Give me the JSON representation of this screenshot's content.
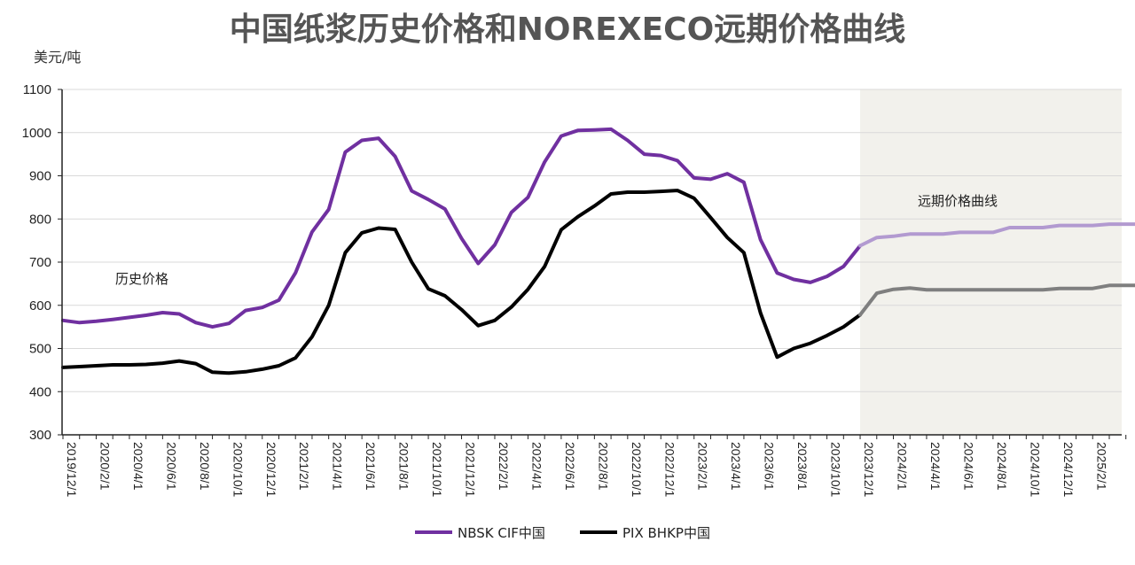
{
  "colors": {
    "nbsk_hist": "#7030a0",
    "nbsk_fwd": "#b29ad0",
    "pix_hist": "#000000",
    "pix_fwd": "#7f7f7f",
    "forward_bg": "#f2f1ec"
  },
  "chart_data": {
    "type": "line",
    "title": "中国纸浆历史价格和NOREXECO远期价格曲线",
    "ylabel": "美元/吨",
    "xlabel": "",
    "ylim": [
      300,
      1100
    ],
    "yticks": [
      300,
      400,
      500,
      600,
      700,
      800,
      900,
      1000,
      1100
    ],
    "grid": true,
    "legend_position": "bottom",
    "x_tick_labels": [
      "2019/12/1",
      "2020/2/1",
      "2020/4/1",
      "2020/6/1",
      "2020/8/1",
      "2020/10/1",
      "2020/12/1",
      "2021/2/1",
      "2021/4/1",
      "2021/6/1",
      "2021/8/1",
      "2021/10/1",
      "2021/12/1",
      "2022/2/1",
      "2022/4/1",
      "2022/6/1",
      "2022/8/1",
      "2022/10/1",
      "2022/12/1",
      "2023/2/1",
      "2023/4/1",
      "2023/6/1",
      "2023/8/1",
      "2023/10/1",
      "2023/12/1",
      "2024/2/1",
      "2024/4/1",
      "2024/6/1",
      "2024/8/1",
      "2024/10/1",
      "2024/12/1",
      "2025/2/1"
    ],
    "annotations": {
      "historical": "历史价格",
      "forward": "远期价格曲线"
    },
    "forward_start_month": "2023/12/1",
    "series": [
      {
        "name": "NBSK CIF中国",
        "values": [
          565,
          560,
          563,
          567,
          572,
          577,
          583,
          580,
          560,
          550,
          558,
          588,
          595,
          612,
          675,
          770,
          822,
          955,
          982,
          987,
          945,
          865,
          845,
          823,
          755,
          697,
          740,
          815,
          850,
          932,
          992,
          1005,
          1006,
          1008,
          982,
          950,
          947,
          935,
          895,
          892,
          905,
          885,
          752,
          675,
          660,
          653,
          667,
          690,
          738,
          757,
          760,
          765,
          765,
          765,
          769,
          769,
          769,
          780,
          780,
          780,
          785,
          785,
          785,
          788,
          788,
          788
        ]
      },
      {
        "name": "PIX BHKP中国",
        "values": [
          456,
          458,
          460,
          462,
          462,
          463,
          466,
          471,
          465,
          445,
          443,
          446,
          452,
          460,
          478,
          527,
          600,
          722,
          768,
          779,
          776,
          700,
          638,
          622,
          590,
          553,
          565,
          596,
          637,
          690,
          775,
          805,
          830,
          858,
          862,
          862,
          864,
          866,
          848,
          803,
          757,
          722,
          582,
          480,
          500,
          512,
          530,
          550,
          578,
          628,
          637,
          640,
          636,
          636,
          636,
          636,
          636,
          636,
          636,
          636,
          639,
          639,
          639,
          646,
          646,
          646
        ]
      }
    ]
  }
}
